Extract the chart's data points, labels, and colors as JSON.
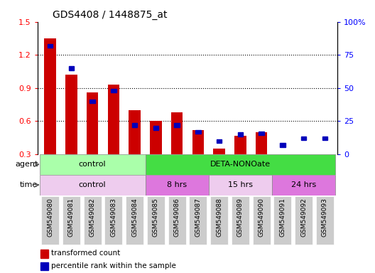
{
  "title": "GDS4408 / 1448875_at",
  "samples": [
    "GSM549080",
    "GSM549081",
    "GSM549082",
    "GSM549083",
    "GSM549084",
    "GSM549085",
    "GSM549086",
    "GSM549087",
    "GSM549088",
    "GSM549089",
    "GSM549090",
    "GSM549091",
    "GSM549092",
    "GSM549093"
  ],
  "transformed_count": [
    1.35,
    1.02,
    0.86,
    0.93,
    0.7,
    0.6,
    0.68,
    0.52,
    0.35,
    0.47,
    0.5,
    0.28,
    0.28,
    0.29
  ],
  "percentile_rank": [
    82,
    65,
    40,
    48,
    22,
    20,
    22,
    17,
    10,
    15,
    16,
    7,
    12,
    12
  ],
  "baseline": 0.3,
  "ylim_left": [
    0.3,
    1.5
  ],
  "ylim_right": [
    0,
    100
  ],
  "yticks_left": [
    0.3,
    0.6,
    0.9,
    1.2,
    1.5
  ],
  "yticks_right": [
    0,
    25,
    50,
    75,
    100
  ],
  "yticklabels_right": [
    "0",
    "25",
    "50",
    "75",
    "100%"
  ],
  "bar_color_red": "#cc0000",
  "bar_color_blue": "#0000bb",
  "agent_groups": [
    {
      "label": "control",
      "start": 0,
      "end": 5,
      "color": "#aaffaa"
    },
    {
      "label": "DETA-NONOate",
      "start": 5,
      "end": 14,
      "color": "#44dd44"
    }
  ],
  "time_groups": [
    {
      "label": "control",
      "start": 0,
      "end": 5,
      "color": "#eeccee"
    },
    {
      "label": "8 hrs",
      "start": 5,
      "end": 8,
      "color": "#dd77dd"
    },
    {
      "label": "15 hrs",
      "start": 8,
      "end": 11,
      "color": "#eeccee"
    },
    {
      "label": "24 hrs",
      "start": 11,
      "end": 14,
      "color": "#dd77dd"
    }
  ],
  "tick_bg_color": "#cccccc",
  "legend_red_label": "transformed count",
  "legend_blue_label": "percentile rank within the sample",
  "agent_label": "agent",
  "time_label": "time",
  "figure_width": 5.28,
  "figure_height": 3.84,
  "dpi": 100
}
